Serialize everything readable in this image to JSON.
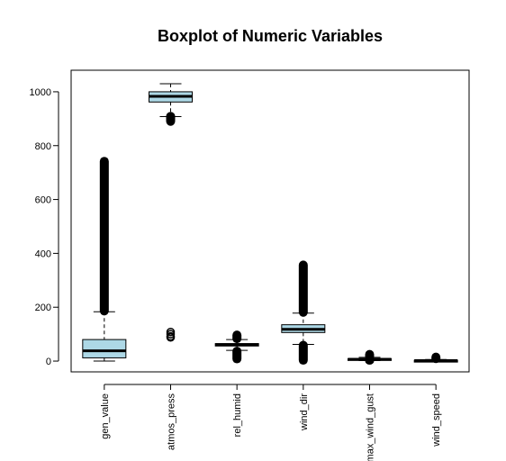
{
  "chart_data": {
    "type": "boxplot",
    "title": "Boxplot of Numeric Variables",
    "xlabel": "",
    "ylabel": "",
    "ylim": [
      -40,
      1080
    ],
    "yticks": [
      0,
      200,
      400,
      600,
      800,
      1000
    ],
    "grid": false,
    "box_fill": "#add8e6",
    "series": [
      {
        "name": "gen_value",
        "whisker_low": 0,
        "q1": 12,
        "median": 38,
        "q3": 80,
        "whisker_high": 183,
        "outlier_ranges": [
          [
            183,
            745
          ]
        ],
        "outliers": []
      },
      {
        "name": "atmos_press",
        "whisker_low": 908,
        "q1": 962,
        "median": 983,
        "q3": 1000,
        "whisker_high": 1030,
        "outlier_ranges": [
          [
            887,
            912
          ]
        ],
        "outliers": [
          88,
          92,
          100,
          108
        ]
      },
      {
        "name": "rel_humid",
        "whisker_low": 40,
        "q1": 56,
        "median": 61,
        "q3": 65,
        "whisker_high": 80,
        "outlier_ranges": [
          [
            5,
            40
          ],
          [
            80,
            100
          ]
        ],
        "outliers": []
      },
      {
        "name": "wind_dir",
        "whisker_low": 62,
        "q1": 106,
        "median": 118,
        "q3": 135,
        "whisker_high": 178,
        "outlier_ranges": [
          [
            0,
            62
          ],
          [
            178,
            360
          ]
        ],
        "outliers": []
      },
      {
        "name": "max_wind_gust",
        "whisker_low": 2,
        "q1": 5,
        "median": 7,
        "q3": 9,
        "whisker_high": 14,
        "outlier_ranges": [
          [
            0,
            2
          ],
          [
            14,
            28
          ]
        ],
        "outliers": []
      },
      {
        "name": "wind_speed",
        "whisker_low": 0,
        "q1": 1,
        "median": 2,
        "q3": 3,
        "whisker_high": 6,
        "outlier_ranges": [
          [
            6,
            18
          ]
        ],
        "outliers": []
      }
    ]
  }
}
